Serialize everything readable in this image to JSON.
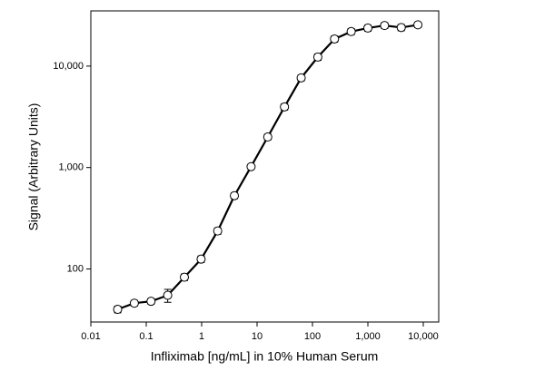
{
  "chart_data": {
    "type": "line",
    "x_label": "Infliximab [ng/mL] in 10% Human Serum",
    "y_label": "Signal (Arbitrary Units)",
    "x_log": true,
    "y_log": true,
    "color": "#000000",
    "x": [
      0.0305,
      0.061,
      0.122,
      0.244,
      0.488,
      0.977,
      1.95,
      3.9,
      7.8,
      15.6,
      31.25,
      62.5,
      125,
      250,
      500,
      1000,
      2000,
      4000,
      8000
    ],
    "values": [
      40,
      46,
      48,
      55,
      83,
      125,
      237,
      528,
      1020,
      2000,
      3960,
      7650,
      12270,
      18500,
      21900,
      23700,
      25100,
      24000,
      25500
    ],
    "errors": [
      3,
      3,
      3,
      8,
      6,
      9,
      17,
      35,
      60,
      130,
      280,
      500,
      900,
      1300,
      1500,
      1600,
      1700,
      1700,
      1600
    ],
    "xlim": [
      0.01,
      19000
    ],
    "ylim": [
      30,
      35000
    ],
    "xticks": [
      0.01,
      0.1,
      1,
      10,
      100,
      {
        "value": 1000,
        "label": "1,000"
      },
      {
        "value": 10000,
        "label": "10,000"
      }
    ],
    "yticks": [
      100,
      {
        "value": 1000,
        "label": "1,000"
      },
      {
        "value": 10000,
        "label": "10,000"
      }
    ]
  }
}
